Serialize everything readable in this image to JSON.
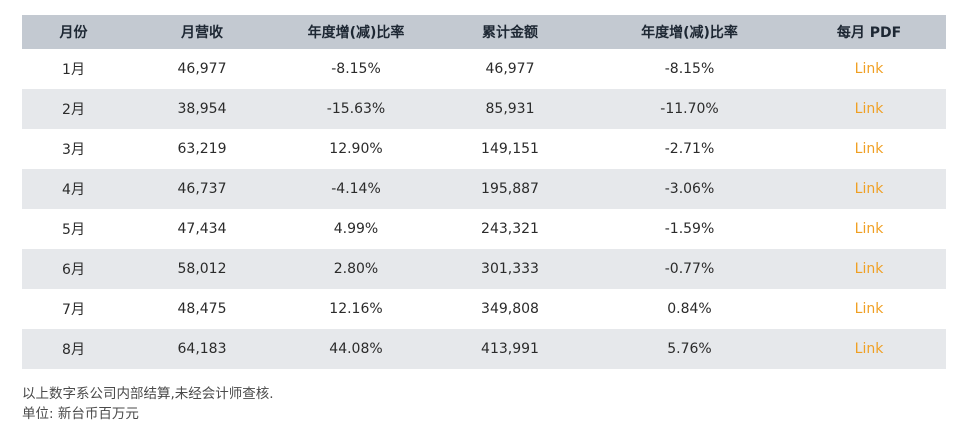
{
  "table": {
    "headers": [
      "月份",
      "月营收",
      "年度增(减)比率",
      "累计金额",
      "年度增(减)比率",
      "每月 PDF"
    ],
    "rows": [
      {
        "month": "1月",
        "revenue": "46,977",
        "yoy": "-8.15%",
        "cumulative": "46,977",
        "cum_yoy": "-8.15%",
        "pdf": "Link"
      },
      {
        "month": "2月",
        "revenue": "38,954",
        "yoy": "-15.63%",
        "cumulative": "85,931",
        "cum_yoy": "-11.70%",
        "pdf": "Link"
      },
      {
        "month": "3月",
        "revenue": "63,219",
        "yoy": "12.90%",
        "cumulative": "149,151",
        "cum_yoy": "-2.71%",
        "pdf": "Link"
      },
      {
        "month": "4月",
        "revenue": "46,737",
        "yoy": "-4.14%",
        "cumulative": "195,887",
        "cum_yoy": "-3.06%",
        "pdf": "Link"
      },
      {
        "month": "5月",
        "revenue": "47,434",
        "yoy": "4.99%",
        "cumulative": "243,321",
        "cum_yoy": "-1.59%",
        "pdf": "Link"
      },
      {
        "month": "6月",
        "revenue": "58,012",
        "yoy": "2.80%",
        "cumulative": "301,333",
        "cum_yoy": "-0.77%",
        "pdf": "Link"
      },
      {
        "month": "7月",
        "revenue": "48,475",
        "yoy": "12.16%",
        "cumulative": "349,808",
        "cum_yoy": "0.84%",
        "pdf": "Link"
      },
      {
        "month": "8月",
        "revenue": "64,183",
        "yoy": "44.08%",
        "cumulative": "413,991",
        "cum_yoy": "5.76%",
        "pdf": "Link"
      }
    ]
  },
  "notes": {
    "disclaimer": "以上数字系公司内部结算,未经会计师查核.",
    "unit": "单位: 新台币百万元"
  },
  "colors": {
    "header_bg": "#c3c9d1",
    "stripe_bg": "#e6e8eb",
    "link": "#f0a024"
  }
}
